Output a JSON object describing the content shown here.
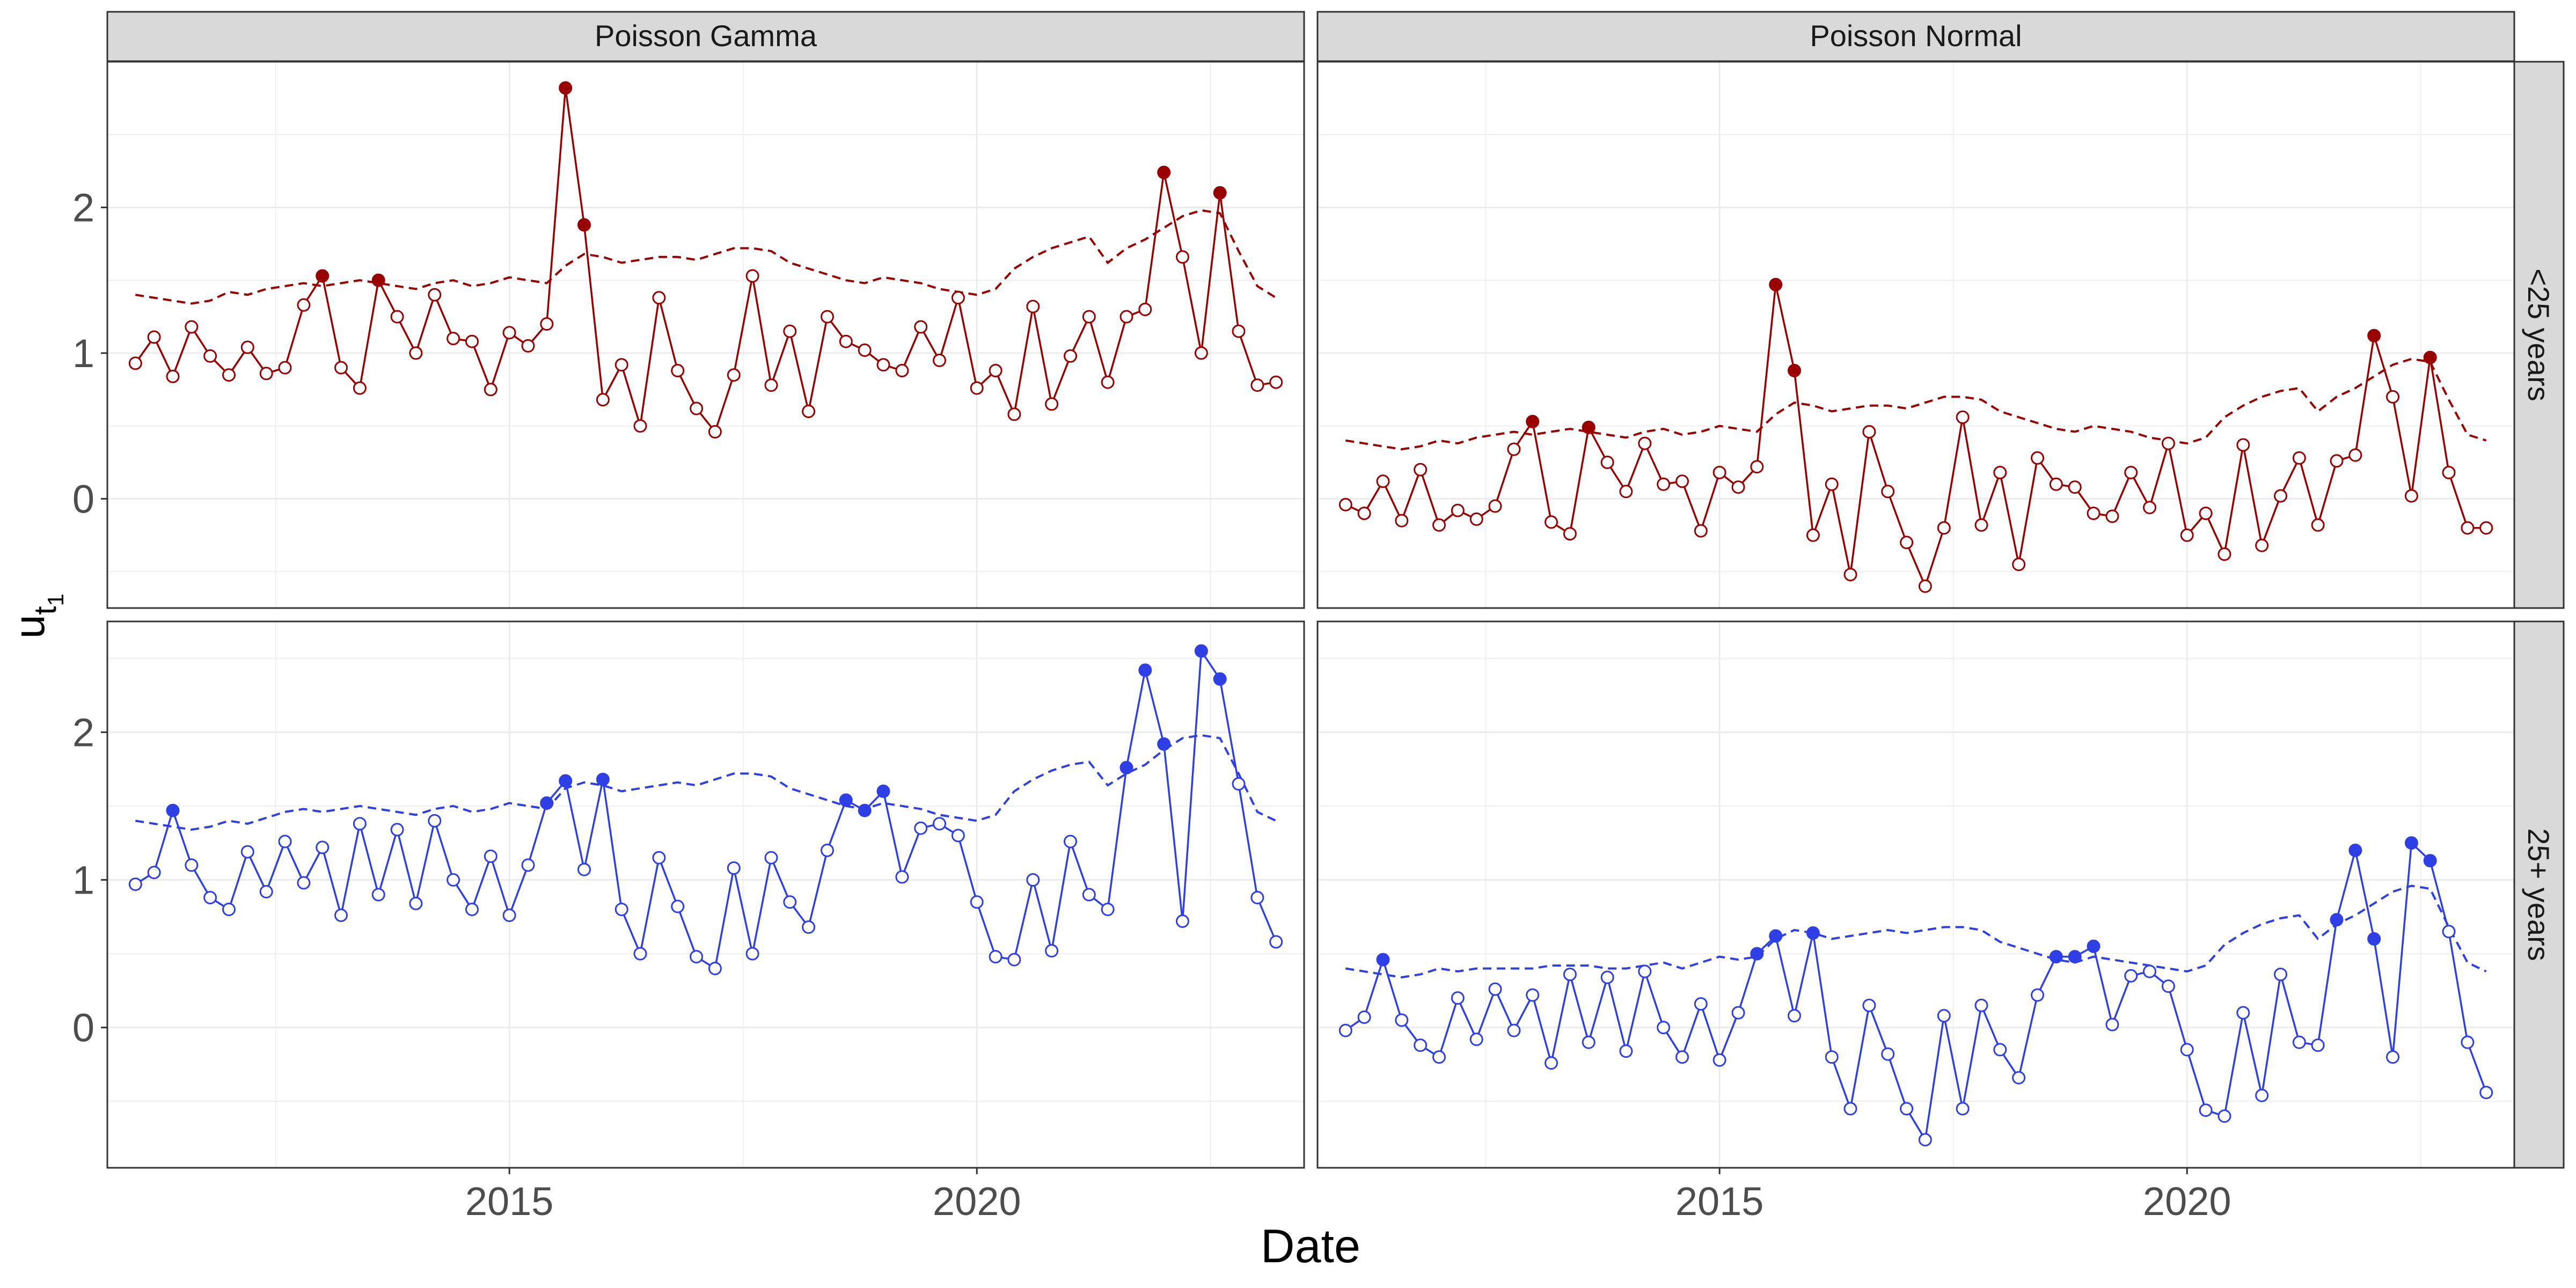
{
  "chart_data": {
    "type": "line",
    "xlabel": "Date",
    "ylabel": "u",
    "ylabel_subscript": "t",
    "ylabel_subsubscript": "1",
    "x_ticks": [
      "2015",
      "2020"
    ],
    "x_tick_values": [
      2015,
      2020
    ],
    "xlim": [
      2010.7,
      2023.5
    ],
    "facet_columns": [
      "Poisson Gamma",
      "Poisson Normal"
    ],
    "facet_rows": [
      "<25 years",
      "25+ years"
    ],
    "grid": true,
    "point_legend": "filled points exceed the dashed threshold; hollow points do not",
    "row_colors": {
      "<25 years": "#990000",
      "25+ years": "#2E3FE6"
    },
    "panels": [
      {
        "column": "Poisson Gamma",
        "row": "<25 years",
        "ylim": [
          -0.75,
          3.0
        ],
        "y_ticks": [
          0,
          1,
          2
        ],
        "x": [
          2011.0,
          2011.2,
          2011.4,
          2011.6,
          2011.8,
          2012.0,
          2012.2,
          2012.4,
          2012.6,
          2012.8,
          2013.0,
          2013.2,
          2013.4,
          2013.6,
          2013.8,
          2014.0,
          2014.2,
          2014.4,
          2014.6,
          2014.8,
          2015.0,
          2015.2,
          2015.4,
          2015.6,
          2015.8,
          2016.0,
          2016.2,
          2016.4,
          2016.6,
          2016.8,
          2017.0,
          2017.2,
          2017.4,
          2017.6,
          2017.8,
          2018.0,
          2018.2,
          2018.4,
          2018.6,
          2018.8,
          2019.0,
          2019.2,
          2019.4,
          2019.6,
          2019.8,
          2020.0,
          2020.2,
          2020.4,
          2020.6,
          2020.8,
          2021.0,
          2021.2,
          2021.4,
          2021.6,
          2021.8,
          2022.0,
          2022.2,
          2022.4,
          2022.6,
          2022.8,
          2023.0,
          2023.2
        ],
        "values": [
          0.93,
          1.11,
          0.84,
          1.18,
          0.98,
          0.85,
          1.04,
          0.86,
          0.9,
          1.33,
          1.53,
          0.9,
          0.76,
          1.5,
          1.25,
          1.0,
          1.4,
          1.1,
          1.08,
          0.75,
          1.14,
          1.05,
          1.2,
          2.82,
          1.88,
          0.68,
          0.92,
          0.5,
          1.38,
          0.88,
          0.62,
          0.46,
          0.85,
          1.53,
          0.78,
          1.15,
          0.6,
          1.25,
          1.08,
          1.02,
          0.92,
          0.88,
          1.18,
          0.95,
          1.38,
          0.76,
          0.88,
          0.58,
          1.32,
          0.65,
          0.98,
          1.25,
          0.8,
          1.25,
          1.3,
          2.24,
          1.66,
          1.0,
          2.1,
          1.15,
          0.78,
          0.8
        ],
        "exceed": [
          false,
          false,
          false,
          false,
          false,
          false,
          false,
          false,
          false,
          false,
          true,
          false,
          false,
          true,
          false,
          false,
          false,
          false,
          false,
          false,
          false,
          false,
          false,
          true,
          true,
          false,
          false,
          false,
          false,
          false,
          false,
          false,
          false,
          false,
          false,
          false,
          false,
          false,
          false,
          false,
          false,
          false,
          false,
          false,
          false,
          false,
          false,
          false,
          false,
          false,
          false,
          false,
          false,
          false,
          false,
          true,
          false,
          false,
          true,
          false,
          false,
          false
        ],
        "threshold": [
          1.4,
          1.38,
          1.36,
          1.34,
          1.36,
          1.42,
          1.4,
          1.44,
          1.46,
          1.48,
          1.46,
          1.48,
          1.5,
          1.48,
          1.46,
          1.44,
          1.48,
          1.5,
          1.46,
          1.48,
          1.52,
          1.5,
          1.48,
          1.6,
          1.68,
          1.66,
          1.62,
          1.64,
          1.66,
          1.66,
          1.64,
          1.68,
          1.72,
          1.72,
          1.7,
          1.62,
          1.58,
          1.54,
          1.5,
          1.48,
          1.52,
          1.5,
          1.48,
          1.44,
          1.42,
          1.4,
          1.44,
          1.58,
          1.66,
          1.72,
          1.76,
          1.8,
          1.62,
          1.72,
          1.78,
          1.86,
          1.94,
          1.98,
          1.96,
          1.7,
          1.46,
          1.38
        ]
      },
      {
        "column": "Poisson Normal",
        "row": "<25 years",
        "ylim": [
          -0.75,
          3.0
        ],
        "y_ticks": [
          0,
          1,
          2
        ],
        "x": [
          2011.0,
          2011.2,
          2011.4,
          2011.6,
          2011.8,
          2012.0,
          2012.2,
          2012.4,
          2012.6,
          2012.8,
          2013.0,
          2013.2,
          2013.4,
          2013.6,
          2013.8,
          2014.0,
          2014.2,
          2014.4,
          2014.6,
          2014.8,
          2015.0,
          2015.2,
          2015.4,
          2015.6,
          2015.8,
          2016.0,
          2016.2,
          2016.4,
          2016.6,
          2016.8,
          2017.0,
          2017.2,
          2017.4,
          2017.6,
          2017.8,
          2018.0,
          2018.2,
          2018.4,
          2018.6,
          2018.8,
          2019.0,
          2019.2,
          2019.4,
          2019.6,
          2019.8,
          2020.0,
          2020.2,
          2020.4,
          2020.6,
          2020.8,
          2021.0,
          2021.2,
          2021.4,
          2021.6,
          2021.8,
          2022.0,
          2022.2,
          2022.4,
          2022.6,
          2022.8,
          2023.0,
          2023.2
        ],
        "values": [
          -0.04,
          -0.1,
          0.12,
          -0.15,
          0.2,
          -0.18,
          -0.08,
          -0.14,
          -0.05,
          0.34,
          0.53,
          -0.16,
          -0.24,
          0.49,
          0.25,
          0.05,
          0.38,
          0.1,
          0.12,
          -0.22,
          0.18,
          0.08,
          0.22,
          1.47,
          0.88,
          -0.25,
          0.1,
          -0.52,
          0.46,
          0.05,
          -0.3,
          -0.6,
          -0.2,
          0.56,
          -0.18,
          0.18,
          -0.45,
          0.28,
          0.1,
          0.08,
          -0.1,
          -0.12,
          0.18,
          -0.06,
          0.38,
          -0.25,
          -0.1,
          -0.38,
          0.37,
          -0.32,
          0.02,
          0.28,
          -0.18,
          0.26,
          0.3,
          1.12,
          0.7,
          0.02,
          0.97,
          0.18,
          -0.2,
          -0.2
        ],
        "exceed": [
          false,
          false,
          false,
          false,
          false,
          false,
          false,
          false,
          false,
          false,
          true,
          false,
          false,
          true,
          false,
          false,
          false,
          false,
          false,
          false,
          false,
          false,
          false,
          true,
          true,
          false,
          false,
          false,
          false,
          false,
          false,
          false,
          false,
          false,
          false,
          false,
          false,
          false,
          false,
          false,
          false,
          false,
          false,
          false,
          false,
          false,
          false,
          false,
          false,
          false,
          false,
          false,
          false,
          false,
          false,
          true,
          false,
          false,
          true,
          false,
          false,
          false
        ],
        "threshold": [
          0.4,
          0.38,
          0.36,
          0.34,
          0.36,
          0.4,
          0.38,
          0.42,
          0.44,
          0.46,
          0.44,
          0.46,
          0.48,
          0.46,
          0.44,
          0.42,
          0.46,
          0.48,
          0.44,
          0.46,
          0.5,
          0.48,
          0.46,
          0.58,
          0.66,
          0.64,
          0.6,
          0.62,
          0.64,
          0.64,
          0.62,
          0.66,
          0.7,
          0.7,
          0.68,
          0.6,
          0.56,
          0.52,
          0.48,
          0.46,
          0.5,
          0.48,
          0.46,
          0.42,
          0.4,
          0.38,
          0.42,
          0.56,
          0.64,
          0.7,
          0.74,
          0.76,
          0.6,
          0.7,
          0.76,
          0.84,
          0.92,
          0.96,
          0.94,
          0.68,
          0.44,
          0.4
        ]
      },
      {
        "column": "Poisson Gamma",
        "row": "25+ years",
        "ylim": [
          -0.95,
          2.75
        ],
        "y_ticks": [
          0,
          1,
          2
        ],
        "x": [
          2011.0,
          2011.2,
          2011.4,
          2011.6,
          2011.8,
          2012.0,
          2012.2,
          2012.4,
          2012.6,
          2012.8,
          2013.0,
          2013.2,
          2013.4,
          2013.6,
          2013.8,
          2014.0,
          2014.2,
          2014.4,
          2014.6,
          2014.8,
          2015.0,
          2015.2,
          2015.4,
          2015.6,
          2015.8,
          2016.0,
          2016.2,
          2016.4,
          2016.6,
          2016.8,
          2017.0,
          2017.2,
          2017.4,
          2017.6,
          2017.8,
          2018.0,
          2018.2,
          2018.4,
          2018.6,
          2018.8,
          2019.0,
          2019.2,
          2019.4,
          2019.6,
          2019.8,
          2020.0,
          2020.2,
          2020.4,
          2020.6,
          2020.8,
          2021.0,
          2021.2,
          2021.4,
          2021.6,
          2021.8,
          2022.0,
          2022.2,
          2022.4,
          2022.6,
          2022.8,
          2023.0,
          2023.2
        ],
        "values": [
          0.97,
          1.05,
          1.47,
          1.1,
          0.88,
          0.8,
          1.19,
          0.92,
          1.26,
          0.98,
          1.22,
          0.76,
          1.38,
          0.9,
          1.34,
          0.84,
          1.4,
          1.0,
          0.8,
          1.16,
          0.76,
          1.1,
          1.52,
          1.67,
          1.07,
          1.68,
          0.8,
          0.5,
          1.15,
          0.82,
          0.48,
          0.4,
          1.08,
          0.5,
          1.15,
          0.85,
          0.68,
          1.2,
          1.54,
          1.47,
          1.6,
          1.02,
          1.35,
          1.38,
          1.3,
          0.85,
          0.48,
          0.46,
          1.0,
          0.52,
          1.26,
          0.9,
          0.8,
          1.76,
          2.42,
          1.92,
          0.72,
          2.55,
          2.36,
          1.65,
          0.88,
          0.58
        ],
        "exceed": [
          false,
          false,
          true,
          false,
          false,
          false,
          false,
          false,
          false,
          false,
          false,
          false,
          false,
          false,
          false,
          false,
          false,
          false,
          false,
          false,
          false,
          false,
          true,
          true,
          false,
          true,
          false,
          false,
          false,
          false,
          false,
          false,
          false,
          false,
          false,
          false,
          false,
          false,
          true,
          true,
          true,
          false,
          false,
          false,
          false,
          false,
          false,
          false,
          false,
          false,
          false,
          false,
          false,
          true,
          true,
          true,
          false,
          true,
          true,
          false,
          false,
          false
        ],
        "threshold": [
          1.4,
          1.38,
          1.36,
          1.34,
          1.36,
          1.4,
          1.38,
          1.42,
          1.46,
          1.48,
          1.46,
          1.48,
          1.5,
          1.48,
          1.46,
          1.44,
          1.48,
          1.5,
          1.46,
          1.48,
          1.52,
          1.5,
          1.48,
          1.62,
          1.66,
          1.64,
          1.6,
          1.62,
          1.64,
          1.66,
          1.64,
          1.68,
          1.72,
          1.72,
          1.7,
          1.62,
          1.58,
          1.54,
          1.5,
          1.48,
          1.52,
          1.5,
          1.48,
          1.44,
          1.42,
          1.4,
          1.44,
          1.6,
          1.68,
          1.74,
          1.78,
          1.8,
          1.64,
          1.72,
          1.78,
          1.88,
          1.96,
          1.98,
          1.96,
          1.72,
          1.46,
          1.4
        ]
      },
      {
        "column": "Poisson Normal",
        "row": "25+ years",
        "ylim": [
          -0.95,
          2.75
        ],
        "y_ticks": [
          0,
          1,
          2
        ],
        "x": [
          2011.0,
          2011.2,
          2011.4,
          2011.6,
          2011.8,
          2012.0,
          2012.2,
          2012.4,
          2012.6,
          2012.8,
          2013.0,
          2013.2,
          2013.4,
          2013.6,
          2013.8,
          2014.0,
          2014.2,
          2014.4,
          2014.6,
          2014.8,
          2015.0,
          2015.2,
          2015.4,
          2015.6,
          2015.8,
          2016.0,
          2016.2,
          2016.4,
          2016.6,
          2016.8,
          2017.0,
          2017.2,
          2017.4,
          2017.6,
          2017.8,
          2018.0,
          2018.2,
          2018.4,
          2018.6,
          2018.8,
          2019.0,
          2019.2,
          2019.4,
          2019.6,
          2019.8,
          2020.0,
          2020.2,
          2020.4,
          2020.6,
          2020.8,
          2021.0,
          2021.2,
          2021.4,
          2021.6,
          2021.8,
          2022.0,
          2022.2,
          2022.4,
          2022.6,
          2022.8,
          2023.0,
          2023.2
        ],
        "values": [
          -0.02,
          0.07,
          0.46,
          0.05,
          -0.12,
          -0.2,
          0.2,
          -0.08,
          0.26,
          -0.02,
          0.22,
          -0.24,
          0.36,
          -0.1,
          0.34,
          -0.16,
          0.38,
          0.0,
          -0.2,
          0.16,
          -0.22,
          0.1,
          0.5,
          0.62,
          0.08,
          0.64,
          -0.2,
          -0.55,
          0.15,
          -0.18,
          -0.55,
          -0.76,
          0.08,
          -0.55,
          0.15,
          -0.15,
          -0.34,
          0.22,
          0.48,
          0.48,
          0.55,
          0.02,
          0.35,
          0.38,
          0.28,
          -0.15,
          -0.56,
          -0.6,
          0.1,
          -0.46,
          0.36,
          -0.1,
          -0.12,
          0.73,
          1.2,
          0.6,
          -0.2,
          1.25,
          1.13,
          0.65,
          -0.1,
          -0.44
        ],
        "exceed": [
          false,
          false,
          true,
          false,
          false,
          false,
          false,
          false,
          false,
          false,
          false,
          false,
          false,
          false,
          false,
          false,
          false,
          false,
          false,
          false,
          false,
          false,
          true,
          true,
          false,
          true,
          false,
          false,
          false,
          false,
          false,
          false,
          false,
          false,
          false,
          false,
          false,
          false,
          true,
          true,
          true,
          false,
          false,
          false,
          false,
          false,
          false,
          false,
          false,
          false,
          false,
          false,
          false,
          true,
          true,
          true,
          false,
          true,
          true,
          false,
          false,
          false
        ],
        "threshold": [
          0.4,
          0.38,
          0.36,
          0.34,
          0.36,
          0.4,
          0.38,
          0.4,
          0.4,
          0.4,
          0.4,
          0.42,
          0.42,
          0.42,
          0.4,
          0.4,
          0.42,
          0.44,
          0.4,
          0.44,
          0.48,
          0.46,
          0.48,
          0.6,
          0.66,
          0.64,
          0.6,
          0.62,
          0.64,
          0.66,
          0.64,
          0.66,
          0.68,
          0.68,
          0.66,
          0.58,
          0.54,
          0.5,
          0.46,
          0.44,
          0.48,
          0.46,
          0.44,
          0.42,
          0.4,
          0.38,
          0.42,
          0.56,
          0.64,
          0.7,
          0.74,
          0.76,
          0.6,
          0.7,
          0.76,
          0.84,
          0.92,
          0.96,
          0.94,
          0.68,
          0.44,
          0.38
        ]
      }
    ]
  }
}
